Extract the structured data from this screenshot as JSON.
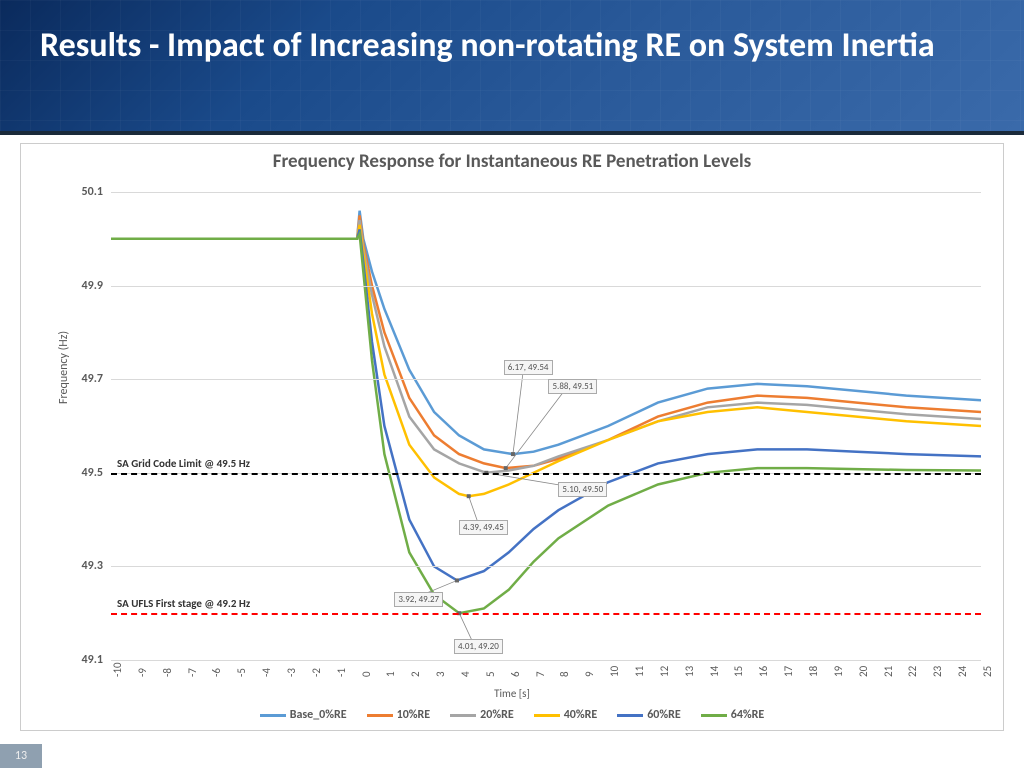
{
  "slide": {
    "title": "Results - Impact of Increasing non-rotating RE on System Inertia",
    "page_number": "13"
  },
  "chart": {
    "type": "line",
    "title": "Frequency Response for Instantaneous RE Penetration Levels",
    "title_fontsize": 19,
    "title_color": "#595959",
    "xlabel": "Time [s]",
    "ylabel": "Frequency (Hz)",
    "label_fontsize": 12,
    "xlim": [
      -10,
      25
    ],
    "ylim": [
      49.1,
      50.1
    ],
    "ytick_step": 0.2,
    "yticks": [
      49.1,
      49.3,
      49.5,
      49.7,
      49.9,
      50.1
    ],
    "xticks": [
      -10,
      -9,
      -8,
      -7,
      -6,
      -5,
      -4,
      -3,
      -2,
      -1,
      0,
      1,
      2,
      3,
      4,
      5,
      6,
      7,
      8,
      9,
      10,
      11,
      12,
      13,
      14,
      15,
      16,
      17,
      18,
      19,
      20,
      21,
      22,
      23,
      24,
      25
    ],
    "grid_color": "#d9d9d9",
    "background_color": "#ffffff",
    "line_width": 2.5,
    "reference_lines": [
      {
        "label": "SA Grid Code Limit  @ 49.5 Hz",
        "y": 49.5,
        "color": "#000000",
        "dash": "6,4"
      },
      {
        "label": "SA UFLS First stage  @ 49.2 Hz",
        "y": 49.2,
        "color": "#ff0000",
        "dash": "6,4"
      }
    ],
    "callouts": [
      {
        "text": "6.17, 49.54",
        "tx": 6.17,
        "ty": 49.54,
        "lx": 5.8,
        "ly": 49.74
      },
      {
        "text": "5.88, 49.51",
        "tx": 5.88,
        "ty": 49.51,
        "lx": 7.6,
        "ly": 49.7
      },
      {
        "text": "5.10, 49.50",
        "tx": 5.1,
        "ty": 49.5,
        "lx": 8.0,
        "ly": 49.48
      },
      {
        "text": "4.39, 49.45",
        "tx": 4.39,
        "ty": 49.45,
        "lx": 4.0,
        "ly": 49.4
      },
      {
        "text": "3.92, 49.27",
        "tx": 3.92,
        "ty": 49.27,
        "lx": 1.4,
        "ly": 49.245
      },
      {
        "text": "4.01, 49.20",
        "tx": 4.01,
        "ty": 49.2,
        "lx": 3.8,
        "ly": 49.145
      }
    ],
    "series": [
      {
        "name": "Base_0%RE",
        "color": "#5b9bd5",
        "points": [
          [
            -10,
            50.0
          ],
          [
            -0.1,
            50.0
          ],
          [
            0,
            50.06
          ],
          [
            0.15,
            50.0
          ],
          [
            0.5,
            49.93
          ],
          [
            1,
            49.85
          ],
          [
            2,
            49.72
          ],
          [
            3,
            49.63
          ],
          [
            4,
            49.58
          ],
          [
            5,
            49.55
          ],
          [
            6.17,
            49.54
          ],
          [
            7,
            49.545
          ],
          [
            8,
            49.56
          ],
          [
            10,
            49.6
          ],
          [
            12,
            49.65
          ],
          [
            14,
            49.68
          ],
          [
            16,
            49.69
          ],
          [
            18,
            49.685
          ],
          [
            20,
            49.675
          ],
          [
            22,
            49.665
          ],
          [
            25,
            49.655
          ]
        ]
      },
      {
        "name": "10%RE",
        "color": "#ed7d31",
        "points": [
          [
            -10,
            50.0
          ],
          [
            -0.1,
            50.0
          ],
          [
            0,
            50.05
          ],
          [
            0.15,
            49.99
          ],
          [
            0.5,
            49.9
          ],
          [
            1,
            49.8
          ],
          [
            2,
            49.66
          ],
          [
            3,
            49.58
          ],
          [
            4,
            49.54
          ],
          [
            5,
            49.52
          ],
          [
            5.88,
            49.51
          ],
          [
            7,
            49.515
          ],
          [
            8,
            49.53
          ],
          [
            10,
            49.57
          ],
          [
            12,
            49.62
          ],
          [
            14,
            49.65
          ],
          [
            16,
            49.665
          ],
          [
            18,
            49.66
          ],
          [
            20,
            49.65
          ],
          [
            22,
            49.64
          ],
          [
            25,
            49.63
          ]
        ]
      },
      {
        "name": "20%RE",
        "color": "#a5a5a5",
        "points": [
          [
            -10,
            50.0
          ],
          [
            -0.1,
            50.0
          ],
          [
            0,
            50.04
          ],
          [
            0.15,
            49.98
          ],
          [
            0.5,
            49.88
          ],
          [
            1,
            49.77
          ],
          [
            2,
            49.62
          ],
          [
            3,
            49.55
          ],
          [
            4,
            49.52
          ],
          [
            5.1,
            49.5
          ],
          [
            6,
            49.505
          ],
          [
            7,
            49.515
          ],
          [
            8,
            49.535
          ],
          [
            10,
            49.57
          ],
          [
            12,
            49.61
          ],
          [
            14,
            49.64
          ],
          [
            16,
            49.65
          ],
          [
            18,
            49.645
          ],
          [
            20,
            49.635
          ],
          [
            22,
            49.625
          ],
          [
            25,
            49.615
          ]
        ]
      },
      {
        "name": "40%RE",
        "color": "#ffc000",
        "points": [
          [
            -10,
            50.0
          ],
          [
            -0.1,
            50.0
          ],
          [
            0,
            50.03
          ],
          [
            0.15,
            49.97
          ],
          [
            0.5,
            49.84
          ],
          [
            1,
            49.71
          ],
          [
            2,
            49.56
          ],
          [
            3,
            49.49
          ],
          [
            4,
            49.455
          ],
          [
            4.39,
            49.45
          ],
          [
            5,
            49.455
          ],
          [
            6,
            49.475
          ],
          [
            7,
            49.5
          ],
          [
            8,
            49.525
          ],
          [
            10,
            49.57
          ],
          [
            12,
            49.61
          ],
          [
            14,
            49.63
          ],
          [
            16,
            49.64
          ],
          [
            18,
            49.63
          ],
          [
            20,
            49.62
          ],
          [
            22,
            49.61
          ],
          [
            25,
            49.6
          ]
        ]
      },
      {
        "name": "60%RE",
        "color": "#4472c4",
        "points": [
          [
            -10,
            50.0
          ],
          [
            -0.1,
            50.0
          ],
          [
            0,
            50.02
          ],
          [
            0.15,
            49.95
          ],
          [
            0.5,
            49.78
          ],
          [
            1,
            49.6
          ],
          [
            2,
            49.4
          ],
          [
            3,
            49.3
          ],
          [
            3.92,
            49.27
          ],
          [
            5,
            49.29
          ],
          [
            6,
            49.33
          ],
          [
            7,
            49.38
          ],
          [
            8,
            49.42
          ],
          [
            10,
            49.48
          ],
          [
            12,
            49.52
          ],
          [
            14,
            49.54
          ],
          [
            16,
            49.55
          ],
          [
            18,
            49.55
          ],
          [
            20,
            49.545
          ],
          [
            22,
            49.54
          ],
          [
            25,
            49.535
          ]
        ]
      },
      {
        "name": "64%RE",
        "color": "#70ad47",
        "points": [
          [
            -10,
            50.0
          ],
          [
            -0.1,
            50.0
          ],
          [
            0,
            50.01
          ],
          [
            0.15,
            49.93
          ],
          [
            0.5,
            49.74
          ],
          [
            1,
            49.54
          ],
          [
            2,
            49.33
          ],
          [
            3,
            49.24
          ],
          [
            4.01,
            49.2
          ],
          [
            5,
            49.21
          ],
          [
            6,
            49.25
          ],
          [
            7,
            49.31
          ],
          [
            8,
            49.36
          ],
          [
            10,
            49.43
          ],
          [
            12,
            49.475
          ],
          [
            14,
            49.5
          ],
          [
            16,
            49.51
          ],
          [
            18,
            49.51
          ],
          [
            20,
            49.508
          ],
          [
            22,
            49.506
          ],
          [
            25,
            49.505
          ]
        ]
      }
    ]
  }
}
